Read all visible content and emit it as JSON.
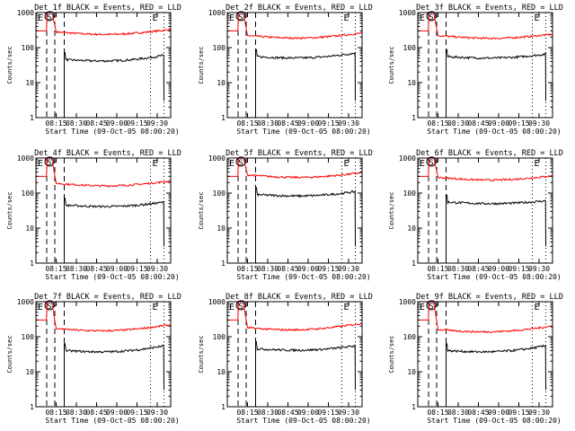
{
  "chart_data": [
    {
      "type": "line",
      "title": "Det_1f BLACK = Events, RED = LLD",
      "xlabel": "Start Time (09-Oct-05 08:00:20)",
      "ylabel": "Counts/sec",
      "yscale": "log",
      "ylim": [
        1,
        1000
      ],
      "xticks": [
        "08:15",
        "08:30",
        "08:45",
        "09:00",
        "09:15",
        "09:30"
      ],
      "yticks": [
        "1",
        "10",
        "100",
        "1000"
      ],
      "markers": [
        "E",
        "S",
        "E"
      ],
      "series": [
        {
          "color": "#ff0000",
          "level_before": 300,
          "level_after": 280,
          "end_level": 330
        },
        {
          "color": "#000000",
          "level_before": null,
          "level_after": 45,
          "end_level": 60
        }
      ]
    },
    {
      "type": "line",
      "title": "Det_2f BLACK = Events, RED = LLD",
      "xlabel": "Start Time (09-Oct-05 08:00:20)",
      "ylabel": "Counts/sec",
      "yscale": "log",
      "ylim": [
        1,
        1000
      ],
      "xticks": [
        "08:15",
        "08:30",
        "08:45",
        "09:00",
        "09:15",
        "09:30"
      ],
      "yticks": [
        "1",
        "10",
        "100",
        "1000"
      ],
      "markers": [
        "E",
        "S",
        "E"
      ],
      "series": [
        {
          "color": "#ff0000",
          "level_before": 300,
          "level_after": 220,
          "end_level": 260
        },
        {
          "color": "#000000",
          "level_before": null,
          "level_after": 55,
          "end_level": 70
        }
      ]
    },
    {
      "type": "line",
      "title": "Det_3f BLACK = Events, RED = LLD",
      "xlabel": "Start Time (09-Oct-05 08:00:20)",
      "ylabel": "Counts/sec",
      "yscale": "log",
      "ylim": [
        1,
        1000
      ],
      "xticks": [
        "08:15",
        "08:30",
        "08:45",
        "09:00",
        "09:15",
        "09:30"
      ],
      "yticks": [
        "1",
        "10",
        "100",
        "1000"
      ],
      "markers": [
        "E",
        "S",
        "E"
      ],
      "series": [
        {
          "color": "#ff0000",
          "level_before": 300,
          "level_after": 220,
          "end_level": 240
        },
        {
          "color": "#000000",
          "level_before": null,
          "level_after": 55,
          "end_level": 65
        }
      ]
    },
    {
      "type": "line",
      "title": "Det_4f BLACK = Events, RED = LLD",
      "xlabel": "Start Time (09-Oct-05 08:00:20)",
      "ylabel": "Counts/sec",
      "yscale": "log",
      "ylim": [
        1,
        1000
      ],
      "xticks": [
        "08:15",
        "08:30",
        "08:45",
        "09:00",
        "09:15",
        "09:30"
      ],
      "yticks": [
        "1",
        "10",
        "100",
        "1000"
      ],
      "markers": [
        "E",
        "S",
        "E"
      ],
      "series": [
        {
          "color": "#ff0000",
          "level_before": 300,
          "level_after": 190,
          "end_level": 220
        },
        {
          "color": "#000000",
          "level_before": null,
          "level_after": 45,
          "end_level": 55
        }
      ]
    },
    {
      "type": "line",
      "title": "Det_5f BLACK = Events, RED = LLD",
      "xlabel": "Start Time (09-Oct-05 08:00:20)",
      "ylabel": "Counts/sec",
      "yscale": "log",
      "ylim": [
        1,
        1000
      ],
      "xticks": [
        "08:15",
        "08:30",
        "08:45",
        "09:00",
        "09:15",
        "09:30"
      ],
      "yticks": [
        "1",
        "10",
        "100",
        "1000"
      ],
      "markers": [
        "E",
        "S",
        "E"
      ],
      "series": [
        {
          "color": "#ff0000",
          "level_before": 300,
          "level_after": 330,
          "end_level": 380
        },
        {
          "color": "#000000",
          "level_before": null,
          "level_after": 90,
          "end_level": 110
        }
      ]
    },
    {
      "type": "line",
      "title": "Det_6f BLACK = Events, RED = LLD",
      "xlabel": "Start Time (09-Oct-05 08:00:20)",
      "ylabel": "Counts/sec",
      "yscale": "log",
      "ylim": [
        1,
        1000
      ],
      "xticks": [
        "08:15",
        "08:30",
        "08:45",
        "09:00",
        "09:15",
        "09:30"
      ],
      "yticks": [
        "1",
        "10",
        "100",
        "1000"
      ],
      "markers": [
        "E",
        "S",
        "E"
      ],
      "series": [
        {
          "color": "#ff0000",
          "level_before": 300,
          "level_after": 280,
          "end_level": 310
        },
        {
          "color": "#000000",
          "level_before": null,
          "level_after": 55,
          "end_level": 60
        }
      ]
    },
    {
      "type": "line",
      "title": "Det_7f BLACK = Events, RED = LLD",
      "xlabel": "Start Time (09-Oct-05 08:00:20)",
      "ylabel": "Counts/sec",
      "yscale": "log",
      "ylim": [
        1,
        1000
      ],
      "xticks": [
        "08:15",
        "08:30",
        "08:45",
        "09:00",
        "09:15",
        "09:30"
      ],
      "yticks": [
        "1",
        "10",
        "100",
        "1000"
      ],
      "markers": [
        "E",
        "S",
        "E"
      ],
      "series": [
        {
          "color": "#ff0000",
          "level_before": 300,
          "level_after": 170,
          "end_level": 220
        },
        {
          "color": "#000000",
          "level_before": null,
          "level_after": 40,
          "end_level": 55
        }
      ]
    },
    {
      "type": "line",
      "title": "Det_8f BLACK = Events, RED = LLD",
      "xlabel": "Start Time (09-Oct-05 08:00:20)",
      "ylabel": "Counts/sec",
      "yscale": "log",
      "ylim": [
        1,
        1000
      ],
      "xticks": [
        "08:15",
        "08:30",
        "08:45",
        "09:00",
        "09:15",
        "09:30"
      ],
      "yticks": [
        "1",
        "10",
        "100",
        "1000"
      ],
      "markers": [
        "E",
        "S",
        "E"
      ],
      "series": [
        {
          "color": "#ff0000",
          "level_before": 300,
          "level_after": 180,
          "end_level": 240
        },
        {
          "color": "#000000",
          "level_before": null,
          "level_after": 45,
          "end_level": 55
        }
      ]
    },
    {
      "type": "line",
      "title": "Det_9f BLACK = Events, RED = LLD",
      "xlabel": "Start Time (09-Oct-05 08:00:20)",
      "ylabel": "Counts/sec",
      "yscale": "log",
      "ylim": [
        1,
        1000
      ],
      "xticks": [
        "08:15",
        "08:30",
        "08:45",
        "09:00",
        "09:15",
        "09:30"
      ],
      "yticks": [
        "1",
        "10",
        "100",
        "1000"
      ],
      "markers": [
        "E",
        "S",
        "E"
      ],
      "series": [
        {
          "color": "#ff0000",
          "level_before": 300,
          "level_after": 160,
          "end_level": 200
        },
        {
          "color": "#000000",
          "level_before": null,
          "level_after": 40,
          "end_level": 55
        }
      ]
    }
  ]
}
